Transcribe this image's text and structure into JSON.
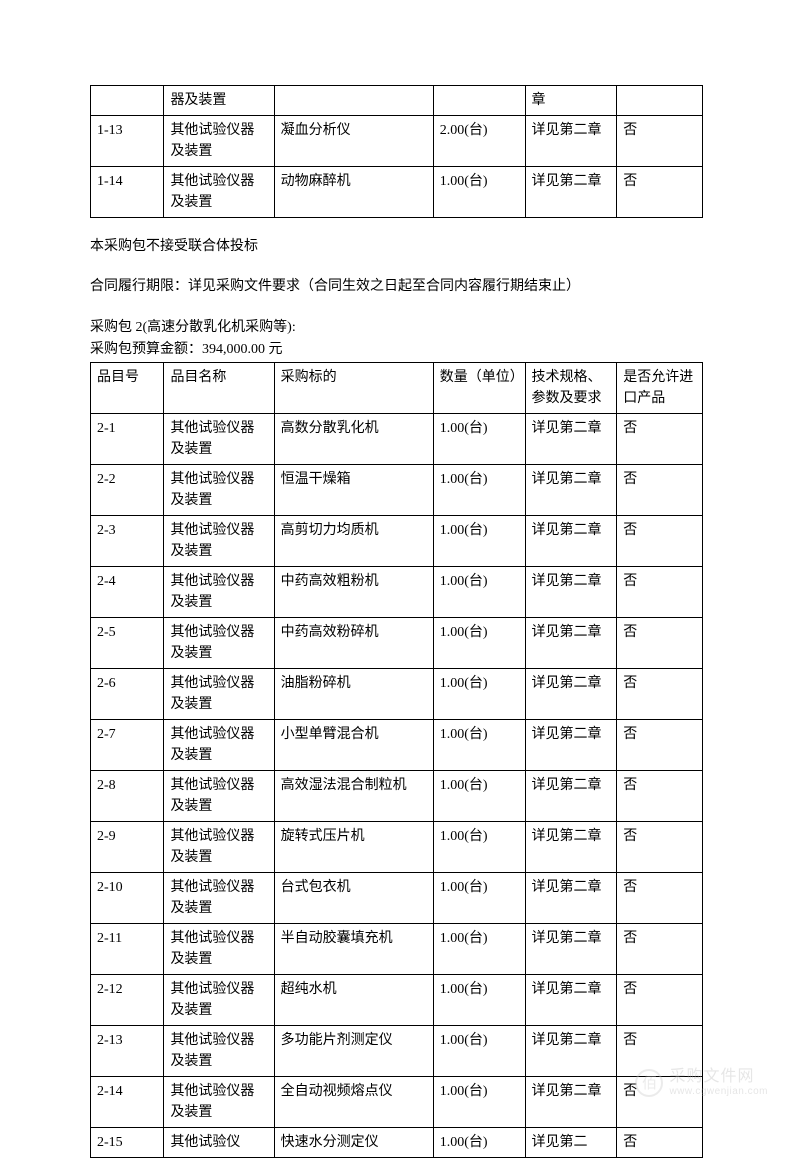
{
  "table1": {
    "rows": [
      {
        "c1": "",
        "c2": "器及装置",
        "c3": "",
        "c4": "",
        "c5": "章",
        "c6": ""
      },
      {
        "c1": "1-13",
        "c2": "其他试验仪器及装置",
        "c3": "凝血分析仪",
        "c4": "2.00(台)",
        "c5": "详见第二章",
        "c6": "否"
      },
      {
        "c1": "1-14",
        "c2": "其他试验仪器及装置",
        "c3": "动物麻醉机",
        "c4": "1.00(台)",
        "c5": "详见第二章",
        "c6": "否"
      }
    ]
  },
  "notice1": "本采购包不接受联合体投标",
  "notice2": "合同履行期限：详见采购文件要求（合同生效之日起至合同内容履行期结束止）",
  "package2_title": "采购包 2(高速分散乳化机采购等):",
  "package2_budget": "采购包预算金额：394,000.00 元",
  "table2": {
    "header": {
      "c1": "品目号",
      "c2": "品目名称",
      "c3": "采购标的",
      "c4": "数量（单位）",
      "c5": "技术规格、参数及要求",
      "c6": "是否允许进口产品"
    },
    "rows": [
      {
        "c1": "2-1",
        "c2": "其他试验仪器及装置",
        "c3": "高数分散乳化机",
        "c4": "1.00(台)",
        "c5": "详见第二章",
        "c6": "否"
      },
      {
        "c1": "2-2",
        "c2": "其他试验仪器及装置",
        "c3": "恒温干燥箱",
        "c4": "1.00(台)",
        "c5": "详见第二章",
        "c6": "否"
      },
      {
        "c1": "2-3",
        "c2": "其他试验仪器及装置",
        "c3": "高剪切力均质机",
        "c4": "1.00(台)",
        "c5": "详见第二章",
        "c6": "否"
      },
      {
        "c1": "2-4",
        "c2": "其他试验仪器及装置",
        "c3": "中药高效粗粉机",
        "c4": "1.00(台)",
        "c5": "详见第二章",
        "c6": "否"
      },
      {
        "c1": "2-5",
        "c2": "其他试验仪器及装置",
        "c3": "中药高效粉碎机",
        "c4": "1.00(台)",
        "c5": "详见第二章",
        "c6": "否"
      },
      {
        "c1": "2-6",
        "c2": "其他试验仪器及装置",
        "c3": "油脂粉碎机",
        "c4": "1.00(台)",
        "c5": "详见第二章",
        "c6": "否"
      },
      {
        "c1": "2-7",
        "c2": "其他试验仪器及装置",
        "c3": "小型单臂混合机",
        "c4": "1.00(台)",
        "c5": "详见第二章",
        "c6": "否"
      },
      {
        "c1": "2-8",
        "c2": "其他试验仪器及装置",
        "c3": "高效湿法混合制粒机",
        "c4": "1.00(台)",
        "c5": "详见第二章",
        "c6": "否"
      },
      {
        "c1": "2-9",
        "c2": "其他试验仪器及装置",
        "c3": "旋转式压片机",
        "c4": "1.00(台)",
        "c5": "详见第二章",
        "c6": "否"
      },
      {
        "c1": "2-10",
        "c2": "其他试验仪器及装置",
        "c3": "台式包衣机",
        "c4": "1.00(台)",
        "c5": "详见第二章",
        "c6": "否"
      },
      {
        "c1": "2-11",
        "c2": "其他试验仪器及装置",
        "c3": "半自动胶囊填充机",
        "c4": "1.00(台)",
        "c5": "详见第二章",
        "c6": "否"
      },
      {
        "c1": "2-12",
        "c2": "其他试验仪器及装置",
        "c3": "超纯水机",
        "c4": "1.00(台)",
        "c5": "详见第二章",
        "c6": "否"
      },
      {
        "c1": "2-13",
        "c2": "其他试验仪器及装置",
        "c3": "多功能片剂测定仪",
        "c4": "1.00(台)",
        "c5": "详见第二章",
        "c6": "否"
      },
      {
        "c1": "2-14",
        "c2": "其他试验仪器及装置",
        "c3": "全自动视频熔点仪",
        "c4": "1.00(台)",
        "c5": "详见第二章",
        "c6": "否"
      },
      {
        "c1": "2-15",
        "c2": "其他试验仪",
        "c3": "快速水分测定仪",
        "c4": "1.00(台)",
        "c5": "详见第二",
        "c6": "否"
      }
    ]
  },
  "watermark": {
    "icon": "佰",
    "cn": "采购文件网",
    "url": "www.cgwenjian.com"
  }
}
